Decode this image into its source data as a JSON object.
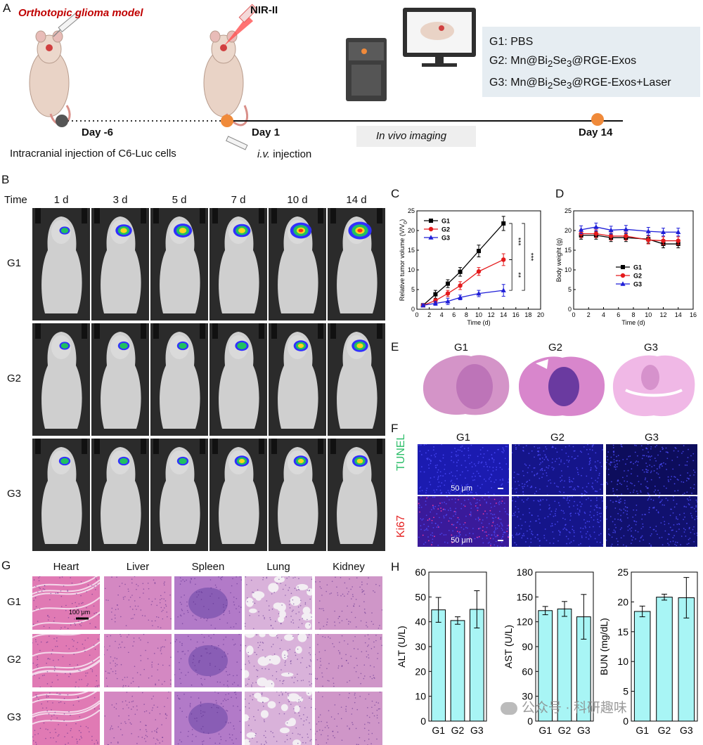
{
  "panelA": {
    "letter": "A",
    "model_title": "Orthotopic glioma model",
    "nir_label": "NIR-II",
    "day_start": "Day -6",
    "day_one": "Day 1",
    "day_end": "Day 14",
    "injection_text": "Intracranial injection of C6-Luc cells",
    "iv_italic": "i.v.",
    "iv_rest": " injection",
    "imaging_label": "In vivo imaging",
    "groups": [
      {
        "prefix": "G1: PBS",
        "parts": []
      },
      {
        "prefix": "G2: Mn@Bi",
        "sub1": "2",
        "mid": "Se",
        "sub2": "3",
        "suffix": "@RGE-Exos"
      },
      {
        "prefix": "G3: Mn@Bi",
        "sub1": "2",
        "mid": "Se",
        "sub2": "3",
        "suffix": "@RGE-Exos+Laser"
      }
    ],
    "colors": {
      "orange": "#f08a3a",
      "gray_dot": "#555555",
      "red": "#c00000"
    }
  },
  "panelB": {
    "letter": "B",
    "time_label": "Time",
    "columns": [
      "1 d",
      "3 d",
      "5 d",
      "7 d",
      "10 d",
      "14 d"
    ],
    "rows": [
      "G1",
      "G2",
      "G3"
    ],
    "signal_level": [
      [
        0.25,
        0.55,
        0.65,
        0.6,
        0.8,
        0.9
      ],
      [
        0.25,
        0.3,
        0.3,
        0.4,
        0.45,
        0.55
      ],
      [
        0.3,
        0.3,
        0.3,
        0.45,
        0.45,
        0.5
      ]
    ]
  },
  "chart_data": [
    {
      "panel": "C",
      "type": "line",
      "xlabel": "Time (d)",
      "ylabel_main": "Relative tumor volume (V/V",
      "ylabel_sub": "0",
      "ylabel_end": ")",
      "xlim": [
        0,
        20
      ],
      "ylim": [
        0,
        25
      ],
      "xticks": [
        0,
        2,
        4,
        6,
        8,
        10,
        12,
        14,
        16,
        18,
        20
      ],
      "yticks": [
        0,
        5,
        10,
        15,
        20,
        25
      ],
      "x": [
        1,
        3,
        5,
        7,
        10,
        14
      ],
      "series": [
        {
          "name": "G1",
          "color": "#000000",
          "marker": "square",
          "values": [
            1.0,
            3.8,
            6.5,
            9.5,
            14.8,
            21.8
          ],
          "err": [
            0.3,
            1.0,
            1.0,
            1.1,
            1.5,
            1.8
          ]
        },
        {
          "name": "G2",
          "color": "#e41a1c",
          "marker": "circle",
          "values": [
            1.0,
            2.2,
            4.0,
            6.0,
            9.6,
            12.6
          ],
          "err": [
            0.3,
            0.5,
            0.8,
            1.0,
            1.0,
            1.5
          ]
        },
        {
          "name": "G3",
          "color": "#1f1fd8",
          "marker": "triangle",
          "values": [
            1.0,
            1.5,
            2.0,
            3.0,
            4.0,
            4.8
          ],
          "err": [
            0.3,
            0.5,
            0.8,
            0.6,
            0.8,
            1.5
          ]
        }
      ],
      "significance": [
        "***",
        "***",
        "**"
      ],
      "legend": "top-left"
    },
    {
      "panel": "D",
      "type": "line",
      "xlabel": "Time (d)",
      "ylabel": "Body weight (g)",
      "xlim": [
        0,
        16
      ],
      "ylim": [
        0,
        25
      ],
      "xticks": [
        0,
        2,
        4,
        6,
        8,
        10,
        12,
        14,
        16
      ],
      "yticks": [
        0,
        5,
        10,
        15,
        20,
        25
      ],
      "x": [
        1,
        3,
        5,
        7,
        10,
        12,
        14
      ],
      "series": [
        {
          "name": "G1",
          "color": "#000000",
          "marker": "square",
          "values": [
            18.8,
            18.8,
            18.2,
            18.2,
            17.8,
            16.6,
            16.6
          ],
          "err": [
            1.0,
            1.0,
            1.0,
            1.0,
            1.0,
            1.0,
            1.0
          ]
        },
        {
          "name": "G2",
          "color": "#e41a1c",
          "marker": "circle",
          "values": [
            19.2,
            19.2,
            18.6,
            18.6,
            17.6,
            17.4,
            17.4
          ],
          "err": [
            1.0,
            1.0,
            1.0,
            1.0,
            1.0,
            1.0,
            1.0
          ]
        },
        {
          "name": "G3",
          "color": "#1f1fd8",
          "marker": "triangle",
          "values": [
            20.2,
            20.9,
            20.1,
            20.3,
            19.8,
            19.6,
            19.6
          ],
          "err": [
            1.0,
            1.0,
            1.0,
            1.0,
            1.0,
            1.0,
            1.0
          ]
        }
      ],
      "legend": "center"
    },
    {
      "panel": "H",
      "type": "bar",
      "ylabel": "ALT (U/L)",
      "categories": [
        "G1",
        "G2",
        "G3"
      ],
      "values": [
        44.8,
        40.5,
        45.0
      ],
      "err": [
        5.0,
        1.5,
        7.5
      ],
      "ylim": [
        0,
        60
      ],
      "yticks": [
        0,
        10,
        20,
        30,
        40,
        50,
        60
      ],
      "color": "#a8f5f5"
    },
    {
      "panel": "H",
      "type": "bar",
      "ylabel": "AST (U/L)",
      "categories": [
        "G1",
        "G2",
        "G3"
      ],
      "values": [
        133.5,
        135.5,
        126.0
      ],
      "err": [
        5.0,
        9.0,
        27.0
      ],
      "ylim": [
        0,
        180
      ],
      "yticks": [
        0,
        30,
        60,
        90,
        120,
        150,
        180
      ],
      "color": "#a8f5f5"
    },
    {
      "panel": "H",
      "type": "bar",
      "ylabel": "BUN (mg/dL)",
      "categories": [
        "G1",
        "G2",
        "G3"
      ],
      "values": [
        18.4,
        20.8,
        20.7
      ],
      "err": [
        0.9,
        0.5,
        3.4
      ],
      "ylim": [
        0,
        25
      ],
      "yticks": [
        0,
        5,
        10,
        15,
        20,
        25
      ],
      "color": "#a8f5f5"
    }
  ],
  "panelE": {
    "letter": "E",
    "labels": [
      "G1",
      "G2",
      "G3"
    ]
  },
  "panelF": {
    "letter": "F",
    "labels": [
      "G1",
      "G2",
      "G3"
    ],
    "rows": [
      "TUNEL",
      "Ki67"
    ],
    "scale": "50 μm",
    "row_colors": [
      "#2dbf6a",
      "#e52222"
    ]
  },
  "panelG": {
    "letter": "G",
    "columns": [
      "Heart",
      "Liver",
      "Spleen",
      "Lung",
      "Kidney"
    ],
    "rows": [
      "G1",
      "G2",
      "G3"
    ],
    "scale": "100 μm"
  },
  "panelH": {
    "letter": "H"
  },
  "watermark": "公众号 · 科研趣味"
}
